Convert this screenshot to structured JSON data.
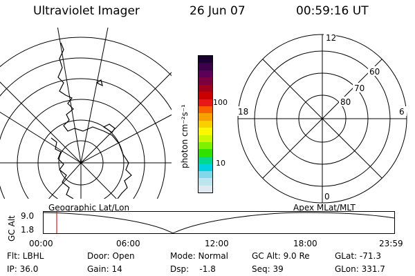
{
  "header": {
    "title": "Ultraviolet Imager",
    "date": "26 Jun 07",
    "time": "00:59:16 UT"
  },
  "colorbar": {
    "unit_label": "photon cm⁻²s⁻¹",
    "tick_100": "100",
    "tick_10": "10",
    "colors": [
      "#1a0030",
      "#3a0048",
      "#5a0058",
      "#7a0040",
      "#a0001a",
      "#c80000",
      "#e81818",
      "#f86000",
      "#f8a000",
      "#f8d000",
      "#f8f800",
      "#c8f800",
      "#80f000",
      "#30e000",
      "#00d890",
      "#00d0e0",
      "#80d8e8",
      "#c0e4ec",
      "#e0e8f0"
    ]
  },
  "polar_plot": {
    "label_top": "12",
    "label_left": "18",
    "label_right": "6",
    "label_bottom": "0",
    "lat_60": "60",
    "lat_70": "70",
    "lat_80": "80"
  },
  "timeline": {
    "left_caption": "Geographic Lat/Lon",
    "right_caption": "Apex MLat/MLT",
    "ylabel": "GC Alt",
    "ytick_top": "9.0",
    "ytick_bottom": "1.8",
    "xticks": [
      "00:00",
      "06:00",
      "12:00",
      "18:00",
      "23:59"
    ],
    "marker_color": "#d02020"
  },
  "status": {
    "flt": "Flt: LBHL",
    "ip": "IP: 36.0",
    "door": "Door: Open",
    "gain": "Gain: 14",
    "mode": "Mode: Normal",
    "dsp": "Dsp:    -1.8",
    "gcalt": "GC Alt: 9.0 Re",
    "seq": "Seq: 39",
    "glat": "GLat: -71.3",
    "glon": "GLon: 331.7"
  }
}
